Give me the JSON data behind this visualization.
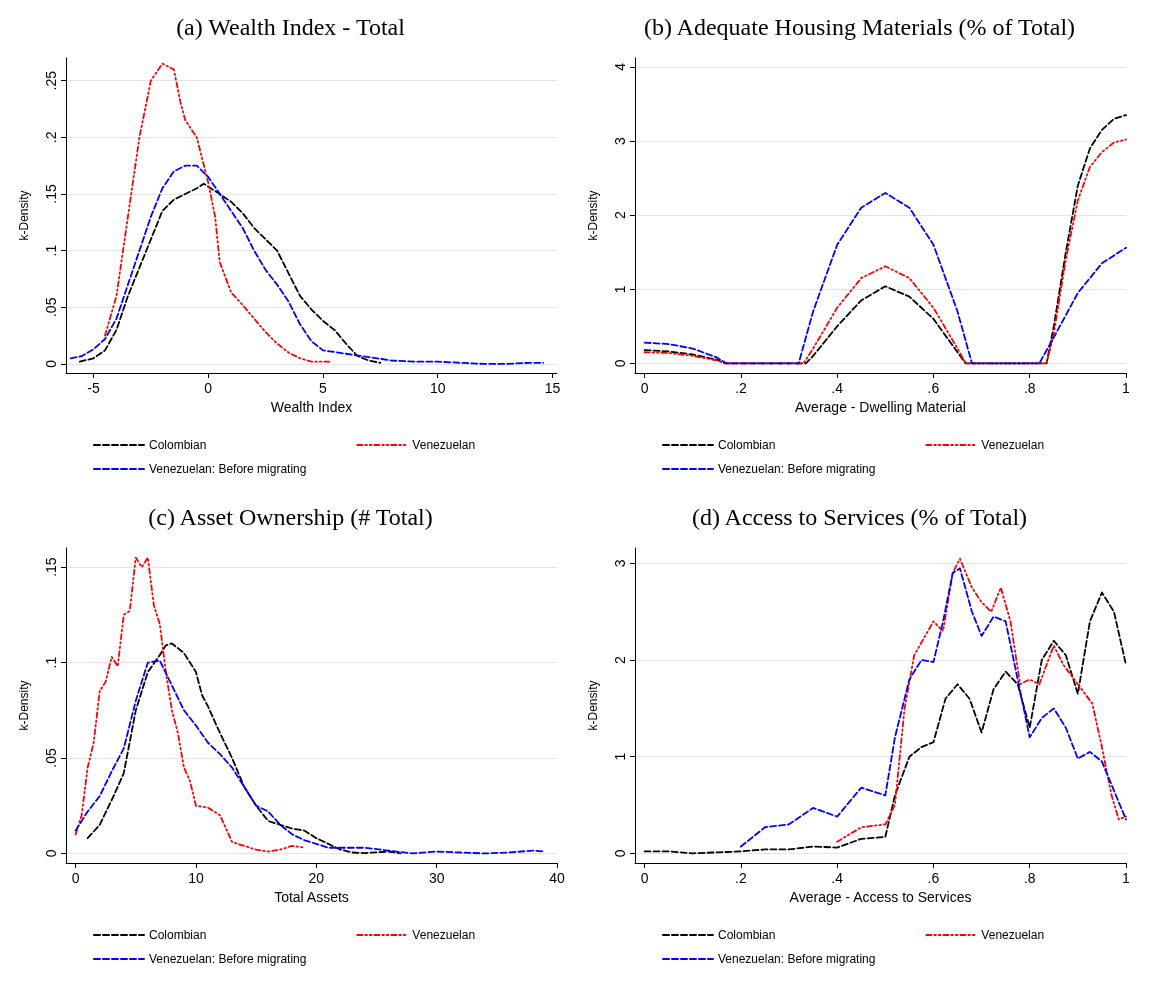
{
  "chart_data": [
    {
      "type": "line",
      "title": "(a) Wealth Index - Total",
      "xlabel": "Wealth Index",
      "ylabel": "k-Density",
      "xlim": [
        -6.2,
        15.2
      ],
      "xticks": [
        -5,
        0,
        5,
        10,
        15
      ],
      "ylim": [
        -0.008,
        0.27
      ],
      "yticks": [
        0,
        {
          "value": 0.05,
          "label": ".05"
        },
        {
          "value": 0.1,
          "label": ".1"
        },
        {
          "value": 0.15,
          "label": ".15"
        },
        {
          "value": 0.2,
          "label": ".2"
        },
        {
          "value": 0.25,
          "label": ".25"
        }
      ],
      "grid": "y",
      "legend": "bottom",
      "marker": "none",
      "series": [
        {
          "name": "Colombian",
          "color": "#000000",
          "line_style": "dashed",
          "x": [
            -5.6,
            -5,
            -4.5,
            -4,
            -3.5,
            -3,
            -2.5,
            -2,
            -1.5,
            -1,
            -0.5,
            -0.2,
            0.5,
            1,
            1.5,
            2,
            2.5,
            3,
            3.5,
            4,
            4.5,
            5,
            5.5,
            6,
            6.5,
            7,
            7.5
          ],
          "values": [
            0.002,
            0.005,
            0.012,
            0.03,
            0.06,
            0.085,
            0.11,
            0.135,
            0.145,
            0.15,
            0.155,
            0.159,
            0.15,
            0.143,
            0.133,
            0.12,
            0.11,
            0.1,
            0.08,
            0.06,
            0.048,
            0.038,
            0.03,
            0.018,
            0.007,
            0.003,
            0.001
          ]
        },
        {
          "name": "Venezuelan",
          "color": "#ff0000",
          "line_style": "dotted",
          "x": [
            -4.5,
            -4,
            -3.5,
            -3,
            -2.5,
            -2,
            -1.5,
            -1.2,
            -1,
            -0.5,
            0,
            0.3,
            0.5,
            1,
            1.5,
            2,
            2.5,
            3,
            3.5,
            4,
            4.5,
            5.3
          ],
          "values": [
            0.025,
            0.06,
            0.13,
            0.2,
            0.25,
            0.265,
            0.26,
            0.23,
            0.215,
            0.2,
            0.16,
            0.13,
            0.09,
            0.063,
            0.052,
            0.04,
            0.028,
            0.018,
            0.01,
            0.005,
            0.002,
            0.002
          ]
        },
        {
          "name": "Venezuelan: Before migrating",
          "color": "#0000ff",
          "line_style": "dashed",
          "x": [
            -6,
            -5.5,
            -5,
            -4.5,
            -4,
            -3.5,
            -3,
            -2.5,
            -2,
            -1.5,
            -1,
            -0.5,
            0,
            0.5,
            1,
            1.5,
            2,
            2.5,
            3,
            3.5,
            4,
            4.5,
            5,
            6,
            7,
            8,
            9,
            10,
            11,
            12,
            13,
            14,
            14.6
          ],
          "values": [
            0.005,
            0.007,
            0.013,
            0.022,
            0.04,
            0.07,
            0.1,
            0.13,
            0.155,
            0.17,
            0.175,
            0.175,
            0.165,
            0.15,
            0.135,
            0.12,
            0.1,
            0.083,
            0.07,
            0.055,
            0.035,
            0.02,
            0.012,
            0.009,
            0.006,
            0.003,
            0.002,
            0.002,
            0.001,
            0,
            0,
            0.001,
            0.001
          ]
        }
      ]
    },
    {
      "type": "line",
      "title": "(b) Adequate Housing Materials (% of Total)",
      "xlabel": "Average - Dwelling Material",
      "ylabel": "k-Density",
      "xlim": [
        -0.02,
        1
      ],
      "xticks": [
        0,
        {
          "value": 0.2,
          "label": ".2"
        },
        {
          "value": 0.4,
          "label": ".4"
        },
        {
          "value": 0.6,
          "label": ".6"
        },
        {
          "value": 0.8,
          "label": ".8"
        },
        1
      ],
      "ylim": [
        -0.13,
        4.12
      ],
      "yticks": [
        0,
        1,
        2,
        3,
        4
      ],
      "grid": "y",
      "legend": "bottom",
      "marker": "none",
      "series": [
        {
          "name": "Colombian",
          "color": "#000000",
          "line_style": "dashed",
          "x": [
            0,
            0.05,
            0.1,
            0.15,
            0.167,
            0.2,
            0.3,
            0.335,
            0.35,
            0.4,
            0.45,
            0.5,
            0.55,
            0.6,
            0.65,
            0.667,
            0.7,
            0.8,
            0.835,
            0.85,
            0.875,
            0.9,
            0.925,
            0.95,
            0.975,
            1
          ],
          "values": [
            0.18,
            0.16,
            0.12,
            0.05,
            0,
            0,
            0,
            0,
            0.1,
            0.5,
            0.85,
            1.04,
            0.9,
            0.6,
            0.15,
            0,
            0,
            0,
            0,
            0.5,
            1.5,
            2.4,
            2.9,
            3.15,
            3.3,
            3.35
          ]
        },
        {
          "name": "Venezuelan",
          "color": "#ff0000",
          "line_style": "dotted",
          "x": [
            0,
            0.05,
            0.1,
            0.15,
            0.167,
            0.33,
            0.35,
            0.4,
            0.45,
            0.5,
            0.55,
            0.6,
            0.65,
            0.667,
            0.835,
            0.85,
            0.875,
            0.9,
            0.925,
            0.95,
            0.975,
            1
          ],
          "values": [
            0.15,
            0.14,
            0.1,
            0.04,
            0,
            0,
            0.2,
            0.75,
            1.15,
            1.31,
            1.15,
            0.75,
            0.2,
            0,
            0,
            0.4,
            1.4,
            2.2,
            2.65,
            2.85,
            2.98,
            3.02
          ]
        },
        {
          "name": "Venezuelan: Before migrating",
          "color": "#0000ff",
          "line_style": "dashed",
          "x": [
            0,
            0.05,
            0.1,
            0.15,
            0.17,
            0.32,
            0.35,
            0.4,
            0.45,
            0.5,
            0.55,
            0.6,
            0.65,
            0.68,
            0.82,
            0.85,
            0.9,
            0.95,
            1
          ],
          "values": [
            0.28,
            0.26,
            0.2,
            0.08,
            0,
            0,
            0.7,
            1.6,
            2.1,
            2.3,
            2.1,
            1.6,
            0.7,
            0,
            0,
            0.35,
            0.95,
            1.35,
            1.56
          ]
        }
      ]
    },
    {
      "type": "line",
      "title": "(c) Asset Ownership (# Total)",
      "xlabel": "Total Assets",
      "ylabel": "k-Density",
      "xlim": [
        -0.8,
        40
      ],
      "xticks": [
        0,
        10,
        20,
        30,
        40
      ],
      "ylim": [
        -0.005,
        0.16
      ],
      "yticks": [
        0,
        {
          "value": 0.05,
          "label": ".05"
        },
        {
          "value": 0.1,
          "label": ".1"
        },
        {
          "value": 0.15,
          "label": ".15"
        }
      ],
      "grid": "y",
      "legend": "bottom",
      "marker": "none",
      "series": [
        {
          "name": "Colombian",
          "color": "#000000",
          "line_style": "dashed",
          "x": [
            1,
            2,
            3,
            4,
            5,
            6,
            7,
            7.5,
            8,
            9,
            10,
            10.5,
            11,
            12,
            13,
            14,
            15,
            16,
            17,
            18,
            19,
            20,
            21,
            22,
            23,
            24,
            26,
            27
          ],
          "values": [
            0.008,
            0.015,
            0.028,
            0.042,
            0.075,
            0.095,
            0.104,
            0.109,
            0.11,
            0.105,
            0.095,
            0.083,
            0.077,
            0.063,
            0.05,
            0.035,
            0.025,
            0.017,
            0.015,
            0.013,
            0.012,
            0.008,
            0.005,
            0.002,
            0.0005,
            0.0002,
            0.001,
            0
          ]
        },
        {
          "name": "Venezuelan",
          "color": "#ff0000",
          "line_style": "dotted",
          "x": [
            0,
            0.5,
            1,
            1.5,
            2,
            2.5,
            3,
            3.5,
            4,
            4.5,
            5,
            5.5,
            6,
            6.5,
            7,
            7.5,
            8,
            8.5,
            9,
            9.5,
            10,
            11,
            12,
            13,
            14,
            15,
            16,
            17,
            18,
            19
          ],
          "values": [
            0.01,
            0.02,
            0.045,
            0.058,
            0.085,
            0.09,
            0.103,
            0.098,
            0.125,
            0.127,
            0.155,
            0.15,
            0.155,
            0.13,
            0.12,
            0.095,
            0.075,
            0.063,
            0.045,
            0.038,
            0.025,
            0.024,
            0.02,
            0.006,
            0.004,
            0.002,
            0.001,
            0.002,
            0.004,
            0.003
          ]
        },
        {
          "name": "Venezuelan: Before migrating",
          "color": "#0000ff",
          "line_style": "dashed",
          "x": [
            0,
            1,
            2,
            3,
            4,
            5,
            6,
            7,
            8,
            9,
            10,
            11,
            12,
            13,
            14,
            15,
            16,
            17,
            18,
            19,
            20,
            21,
            22,
            24,
            26,
            28,
            30,
            32,
            34,
            36,
            38,
            39
          ],
          "values": [
            0.012,
            0.022,
            0.03,
            0.043,
            0.055,
            0.08,
            0.1,
            0.101,
            0.088,
            0.075,
            0.067,
            0.058,
            0.052,
            0.045,
            0.035,
            0.025,
            0.022,
            0.015,
            0.01,
            0.007,
            0.005,
            0.003,
            0.003,
            0.003,
            0.0015,
            0,
            0.001,
            0.0005,
            0,
            0.0005,
            0.0015,
            0.001
          ]
        }
      ]
    },
    {
      "type": "line",
      "title": "(d) Access to Services (% of Total)",
      "xlabel": "Average - Access to Services",
      "ylabel": "k-Density",
      "xlim": [
        -0.02,
        1
      ],
      "xticks": [
        0,
        {
          "value": 0.2,
          "label": ".2"
        },
        {
          "value": 0.4,
          "label": ".4"
        },
        {
          "value": 0.6,
          "label": ".6"
        },
        {
          "value": 0.8,
          "label": ".8"
        },
        1
      ],
      "ylim": [
        -0.1,
        3.16
      ],
      "yticks": [
        0,
        1,
        2,
        3
      ],
      "grid": "y",
      "legend": "bottom",
      "marker": "none",
      "series": [
        {
          "name": "Colombian",
          "color": "#000000",
          "line_style": "dashed",
          "x": [
            0,
            0.05,
            0.1,
            0.15,
            0.2,
            0.25,
            0.3,
            0.35,
            0.4,
            0.45,
            0.5,
            0.52,
            0.55,
            0.575,
            0.6,
            0.625,
            0.65,
            0.675,
            0.7,
            0.725,
            0.75,
            0.775,
            0.8,
            0.825,
            0.85,
            0.875,
            0.9,
            0.925,
            0.95,
            0.975,
            1
          ],
          "values": [
            0.02,
            0.02,
            0,
            0.01,
            0.02,
            0.04,
            0.04,
            0.07,
            0.06,
            0.15,
            0.17,
            0.6,
            1.0,
            1.1,
            1.15,
            1.6,
            1.75,
            1.6,
            1.25,
            1.7,
            1.88,
            1.75,
            1.3,
            2.0,
            2.2,
            2.05,
            1.65,
            2.4,
            2.7,
            2.5,
            1.95
          ]
        },
        {
          "name": "Venezuelan",
          "color": "#ff0000",
          "line_style": "dotted",
          "x": [
            0.4,
            0.45,
            0.5,
            0.52,
            0.54,
            0.56,
            0.6,
            0.62,
            0.64,
            0.655,
            0.68,
            0.7,
            0.72,
            0.74,
            0.76,
            0.78,
            0.8,
            0.82,
            0.85,
            0.87,
            0.9,
            0.93,
            0.95,
            0.97,
            0.985,
            1
          ],
          "values": [
            0.12,
            0.27,
            0.3,
            0.5,
            1.5,
            2.05,
            2.4,
            2.3,
            2.9,
            3.05,
            2.75,
            2.6,
            2.5,
            2.75,
            2.4,
            1.75,
            1.8,
            1.75,
            2.15,
            1.95,
            1.75,
            1.55,
            1.1,
            0.6,
            0.35,
            0.38
          ]
        },
        {
          "name": "Venezuelan: Before migrating",
          "color": "#0000ff",
          "line_style": "dashed",
          "x": [
            0.2,
            0.25,
            0.3,
            0.35,
            0.4,
            0.45,
            0.5,
            0.52,
            0.55,
            0.575,
            0.6,
            0.62,
            0.64,
            0.655,
            0.68,
            0.7,
            0.725,
            0.75,
            0.775,
            0.8,
            0.825,
            0.85,
            0.875,
            0.9,
            0.925,
            0.95,
            0.975,
            1
          ],
          "values": [
            0.07,
            0.27,
            0.3,
            0.47,
            0.38,
            0.68,
            0.6,
            1.2,
            1.8,
            2.0,
            1.98,
            2.4,
            2.9,
            2.95,
            2.5,
            2.25,
            2.45,
            2.4,
            1.8,
            1.2,
            1.4,
            1.5,
            1.3,
            0.98,
            1.05,
            0.95,
            0.65,
            0.35
          ]
        }
      ]
    }
  ]
}
